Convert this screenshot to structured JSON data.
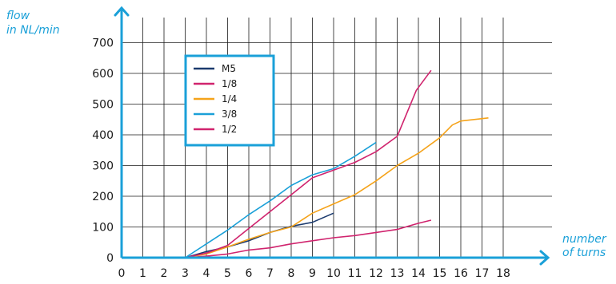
{
  "chart_data": {
    "type": "line",
    "title": "",
    "ylabel_line1": "flow",
    "ylabel_line2": "in NL/min",
    "xlabel_line1": "number",
    "xlabel_line2": "of turns",
    "xlim": [
      0,
      18
    ],
    "ylim": [
      0,
      700
    ],
    "x_ticks": [
      "0",
      "1",
      "2",
      "3",
      "4",
      "5",
      "6",
      "7",
      "8",
      "9",
      "10",
      "11",
      "12",
      "13",
      "14",
      "15",
      "16",
      "17",
      "18"
    ],
    "y_ticks": [
      "0",
      "100",
      "200",
      "300",
      "400",
      "500",
      "600",
      "700"
    ],
    "grid": true,
    "legend_position": "top-left",
    "axis_color": "#1aa0d8",
    "legend_border_color": "#1aa0d8",
    "series": [
      {
        "name": "M5",
        "color": "#1b3a6e",
        "points": [
          [
            3,
            0
          ],
          [
            4,
            20
          ],
          [
            5,
            35
          ],
          [
            6,
            55
          ],
          [
            7,
            82
          ],
          [
            8,
            102
          ],
          [
            9,
            115
          ],
          [
            10,
            145
          ]
        ]
      },
      {
        "name": "1/8",
        "color": "#d0246e",
        "points": [
          [
            3,
            0
          ],
          [
            4,
            5
          ],
          [
            5,
            12
          ],
          [
            6,
            25
          ],
          [
            7,
            32
          ],
          [
            8,
            45
          ],
          [
            9,
            55
          ],
          [
            10,
            65
          ],
          [
            11,
            72
          ],
          [
            12,
            82
          ],
          [
            13,
            92
          ],
          [
            14,
            112
          ],
          [
            14.6,
            122
          ]
        ]
      },
      {
        "name": "1/4",
        "color": "#f5a31a",
        "points": [
          [
            3,
            0
          ],
          [
            4,
            12
          ],
          [
            5,
            35
          ],
          [
            6,
            60
          ],
          [
            7,
            82
          ],
          [
            8,
            100
          ],
          [
            9,
            145
          ],
          [
            10,
            175
          ],
          [
            11,
            205
          ],
          [
            12,
            250
          ],
          [
            13,
            300
          ],
          [
            14,
            340
          ],
          [
            15,
            390
          ],
          [
            15.6,
            432
          ],
          [
            16,
            445
          ],
          [
            17.3,
            455
          ]
        ]
      },
      {
        "name": "3/8",
        "color": "#1aa0d8",
        "points": [
          [
            3,
            0
          ],
          [
            4,
            45
          ],
          [
            5,
            90
          ],
          [
            6,
            140
          ],
          [
            7,
            185
          ],
          [
            8,
            235
          ],
          [
            9,
            270
          ],
          [
            10,
            290
          ],
          [
            11,
            330
          ],
          [
            12,
            375
          ]
        ]
      },
      {
        "name": "1/2",
        "color": "#d0246e",
        "points": [
          [
            3,
            0
          ],
          [
            4,
            15
          ],
          [
            5,
            40
          ],
          [
            6,
            95
          ],
          [
            7,
            150
          ],
          [
            8,
            205
          ],
          [
            9,
            260
          ],
          [
            10,
            285
          ],
          [
            11,
            310
          ],
          [
            12,
            345
          ],
          [
            13,
            395
          ],
          [
            13.9,
            545
          ],
          [
            14.6,
            610
          ]
        ]
      }
    ]
  }
}
